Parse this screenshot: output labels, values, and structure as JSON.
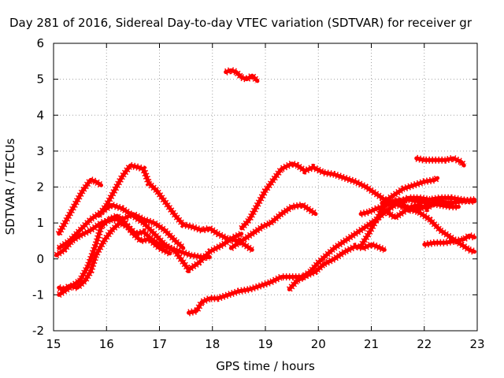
{
  "chart_data": {
    "type": "scatter",
    "title": "Day 281 of 2016, Sidereal Day-to-day VTEC variation (SDTVAR) for receiver gr",
    "xlabel": "GPS time / hours",
    "ylabel": "SDTVAR / TECUs",
    "xlim": [
      15,
      23
    ],
    "ylim": [
      -2,
      6
    ],
    "xticks": [
      "15",
      "16",
      "17",
      "18",
      "19",
      "20",
      "21",
      "22",
      "23"
    ],
    "yticks": [
      "-2",
      "-1",
      "0",
      "1",
      "2",
      "3",
      "4",
      "5",
      "6"
    ],
    "grid": true,
    "legend": "none",
    "color": "#ff0000",
    "series": [
      {
        "points": [
          [
            15.1,
            0.7
          ],
          [
            15.25,
            1.1
          ],
          [
            15.4,
            1.5
          ],
          [
            15.55,
            1.9
          ],
          [
            15.7,
            2.2
          ],
          [
            15.8,
            2.15
          ],
          [
            15.9,
            2.05
          ]
        ]
      },
      {
        "points": [
          [
            15.1,
            0.3
          ],
          [
            15.3,
            0.5
          ],
          [
            15.5,
            0.8
          ],
          [
            15.7,
            1.1
          ],
          [
            15.9,
            1.3
          ],
          [
            16.1,
            1.5
          ],
          [
            16.3,
            1.4
          ],
          [
            16.5,
            1.2
          ],
          [
            16.7,
            1.0
          ],
          [
            16.9,
            0.7
          ],
          [
            17.1,
            0.4
          ],
          [
            17.3,
            0.2
          ],
          [
            17.55,
            -0.3
          ],
          [
            17.75,
            -0.1
          ],
          [
            17.95,
            0.2
          ],
          [
            18.2,
            0.4
          ],
          [
            18.4,
            0.6
          ],
          [
            18.55,
            0.7
          ]
        ]
      },
      {
        "points": [
          [
            15.05,
            0.1
          ],
          [
            15.2,
            0.25
          ],
          [
            15.35,
            0.5
          ],
          [
            15.5,
            0.65
          ],
          [
            15.7,
            0.8
          ],
          [
            15.9,
            1.0
          ],
          [
            16.1,
            1.1
          ],
          [
            16.3,
            1.1
          ],
          [
            16.5,
            1.25
          ],
          [
            16.7,
            1.1
          ],
          [
            16.9,
            1.0
          ],
          [
            17.1,
            0.8
          ],
          [
            17.3,
            0.5
          ],
          [
            17.45,
            0.3
          ]
        ]
      },
      {
        "points": [
          [
            15.1,
            -0.8
          ],
          [
            15.2,
            -0.85
          ],
          [
            15.3,
            -0.75
          ],
          [
            15.45,
            -0.8
          ],
          [
            15.6,
            -0.6
          ],
          [
            15.7,
            -0.35
          ],
          [
            15.8,
            0.1
          ],
          [
            15.95,
            0.5
          ],
          [
            16.1,
            0.8
          ],
          [
            16.25,
            1.0
          ],
          [
            16.4,
            0.9
          ],
          [
            16.55,
            0.7
          ],
          [
            16.7,
            0.75
          ],
          [
            16.85,
            0.55
          ],
          [
            17.0,
            0.4
          ],
          [
            17.2,
            0.3
          ],
          [
            17.4,
            0.2
          ],
          [
            17.6,
            0.1
          ],
          [
            17.8,
            0.05
          ],
          [
            17.95,
            0.05
          ]
        ]
      },
      {
        "points": [
          [
            15.1,
            -1.0
          ],
          [
            15.3,
            -0.8
          ],
          [
            15.5,
            -0.6
          ],
          [
            15.65,
            -0.2
          ],
          [
            15.8,
            0.4
          ],
          [
            15.9,
            0.9
          ],
          [
            16.05,
            1.1
          ],
          [
            16.2,
            1.2
          ],
          [
            16.35,
            1.0
          ],
          [
            16.5,
            0.7
          ],
          [
            16.65,
            0.5
          ],
          [
            16.8,
            0.55
          ],
          [
            17.0,
            0.3
          ],
          [
            17.2,
            0.15
          ]
        ]
      },
      {
        "points": [
          [
            15.85,
            1.2
          ],
          [
            16.0,
            1.5
          ],
          [
            16.15,
            1.9
          ],
          [
            16.3,
            2.3
          ],
          [
            16.45,
            2.6
          ],
          [
            16.6,
            2.55
          ],
          [
            16.7,
            2.5
          ],
          [
            16.8,
            2.1
          ],
          [
            16.95,
            1.9
          ],
          [
            17.1,
            1.6
          ],
          [
            17.3,
            1.2
          ],
          [
            17.45,
            0.95
          ],
          [
            17.6,
            0.9
          ],
          [
            17.8,
            0.8
          ],
          [
            17.95,
            0.85
          ],
          [
            18.1,
            0.7
          ],
          [
            18.3,
            0.55
          ],
          [
            18.5,
            0.5
          ],
          [
            18.6,
            0.4
          ],
          [
            18.7,
            0.3
          ],
          [
            18.75,
            0.25
          ]
        ]
      },
      {
        "points": [
          [
            17.55,
            -1.5
          ],
          [
            17.7,
            -1.45
          ],
          [
            17.8,
            -1.2
          ],
          [
            17.95,
            -1.1
          ],
          [
            18.1,
            -1.1
          ],
          [
            18.3,
            -1.0
          ],
          [
            18.5,
            -0.9
          ],
          [
            18.7,
            -0.85
          ],
          [
            18.9,
            -0.75
          ],
          [
            19.1,
            -0.65
          ],
          [
            19.3,
            -0.5
          ],
          [
            19.5,
            -0.5
          ],
          [
            19.7,
            -0.5
          ],
          [
            19.85,
            -0.35
          ],
          [
            20.0,
            -0.1
          ],
          [
            20.15,
            0.1
          ],
          [
            20.3,
            0.3
          ],
          [
            20.5,
            0.5
          ],
          [
            20.7,
            0.7
          ],
          [
            20.9,
            0.9
          ],
          [
            21.1,
            1.1
          ],
          [
            21.3,
            1.35
          ],
          [
            21.5,
            1.55
          ],
          [
            21.7,
            1.7
          ],
          [
            21.9,
            1.7
          ],
          [
            22.1,
            1.65
          ],
          [
            22.3,
            1.7
          ],
          [
            22.5,
            1.7
          ],
          [
            22.7,
            1.65
          ],
          [
            22.95,
            1.6
          ]
        ]
      },
      {
        "points": [
          [
            18.55,
            0.85
          ],
          [
            18.7,
            1.1
          ],
          [
            18.85,
            1.5
          ],
          [
            19.0,
            1.9
          ],
          [
            19.15,
            2.2
          ],
          [
            19.3,
            2.5
          ],
          [
            19.5,
            2.65
          ],
          [
            19.6,
            2.6
          ],
          [
            19.75,
            2.45
          ],
          [
            19.9,
            2.55
          ],
          [
            20.1,
            2.4
          ],
          [
            20.3,
            2.35
          ],
          [
            20.5,
            2.25
          ],
          [
            20.7,
            2.15
          ],
          [
            20.9,
            2.0
          ],
          [
            21.1,
            1.8
          ],
          [
            21.3,
            1.6
          ],
          [
            21.5,
            1.5
          ],
          [
            21.7,
            1.4
          ],
          [
            21.9,
            1.3
          ],
          [
            22.1,
            1.1
          ],
          [
            22.3,
            0.8
          ],
          [
            22.5,
            0.6
          ],
          [
            22.7,
            0.4
          ],
          [
            22.85,
            0.25
          ],
          [
            22.95,
            0.2
          ]
        ]
      },
      {
        "points": [
          [
            18.35,
            0.3
          ],
          [
            18.5,
            0.45
          ],
          [
            18.65,
            0.6
          ],
          [
            18.8,
            0.75
          ],
          [
            18.95,
            0.9
          ],
          [
            19.1,
            1.0
          ],
          [
            19.3,
            1.25
          ],
          [
            19.5,
            1.45
          ],
          [
            19.7,
            1.5
          ],
          [
            19.85,
            1.35
          ],
          [
            19.95,
            1.25
          ]
        ]
      },
      {
        "points": [
          [
            19.45,
            -0.85
          ],
          [
            19.6,
            -0.6
          ],
          [
            19.8,
            -0.45
          ],
          [
            19.95,
            -0.35
          ],
          [
            20.1,
            -0.15
          ],
          [
            20.3,
            0.0
          ],
          [
            20.5,
            0.2
          ],
          [
            20.7,
            0.35
          ],
          [
            20.85,
            0.3
          ],
          [
            21.0,
            0.4
          ],
          [
            21.1,
            0.35
          ],
          [
            21.25,
            0.25
          ]
        ]
      },
      {
        "points": [
          [
            20.8,
            0.35
          ],
          [
            20.95,
            0.7
          ],
          [
            21.1,
            1.1
          ],
          [
            21.25,
            1.5
          ],
          [
            21.4,
            1.6
          ],
          [
            21.55,
            1.65
          ],
          [
            21.7,
            1.35
          ],
          [
            21.9,
            1.4
          ],
          [
            22.1,
            1.5
          ],
          [
            22.3,
            1.6
          ],
          [
            22.5,
            1.55
          ],
          [
            22.7,
            1.6
          ],
          [
            22.95,
            1.65
          ]
        ]
      },
      {
        "points": [
          [
            20.8,
            1.25
          ],
          [
            20.95,
            1.3
          ],
          [
            21.1,
            1.4
          ],
          [
            21.3,
            1.5
          ],
          [
            21.5,
            1.6
          ],
          [
            21.7,
            1.65
          ],
          [
            21.9,
            1.6
          ],
          [
            22.1,
            1.55
          ],
          [
            22.3,
            1.5
          ],
          [
            22.5,
            1.45
          ],
          [
            22.65,
            1.45
          ]
        ]
      },
      {
        "points": [
          [
            21.15,
            1.4
          ],
          [
            21.3,
            1.3
          ],
          [
            21.45,
            1.15
          ],
          [
            21.6,
            1.3
          ],
          [
            21.75,
            1.45
          ],
          [
            21.9,
            1.5
          ],
          [
            22.05,
            1.4
          ],
          [
            22.2,
            1.6
          ],
          [
            22.35,
            1.6
          ]
        ]
      },
      {
        "points": [
          [
            21.2,
            1.55
          ],
          [
            21.4,
            1.75
          ],
          [
            21.6,
            1.95
          ],
          [
            21.8,
            2.05
          ],
          [
            22.0,
            2.15
          ],
          [
            22.2,
            2.2
          ],
          [
            22.25,
            2.25
          ]
        ]
      },
      {
        "points": [
          [
            21.85,
            2.8
          ],
          [
            22.0,
            2.75
          ],
          [
            22.2,
            2.75
          ],
          [
            22.4,
            2.75
          ],
          [
            22.55,
            2.8
          ],
          [
            22.7,
            2.7
          ],
          [
            22.75,
            2.6
          ]
        ]
      },
      {
        "points": [
          [
            22.0,
            0.4
          ],
          [
            22.2,
            0.45
          ],
          [
            22.4,
            0.45
          ],
          [
            22.6,
            0.5
          ],
          [
            22.75,
            0.55
          ],
          [
            22.85,
            0.65
          ],
          [
            22.95,
            0.6
          ]
        ]
      },
      {
        "points": [
          [
            18.25,
            5.2
          ],
          [
            18.35,
            5.25
          ],
          [
            18.45,
            5.2
          ],
          [
            18.55,
            5.05
          ],
          [
            18.65,
            5.0
          ],
          [
            18.75,
            5.1
          ],
          [
            18.85,
            4.95
          ]
        ]
      }
    ]
  }
}
